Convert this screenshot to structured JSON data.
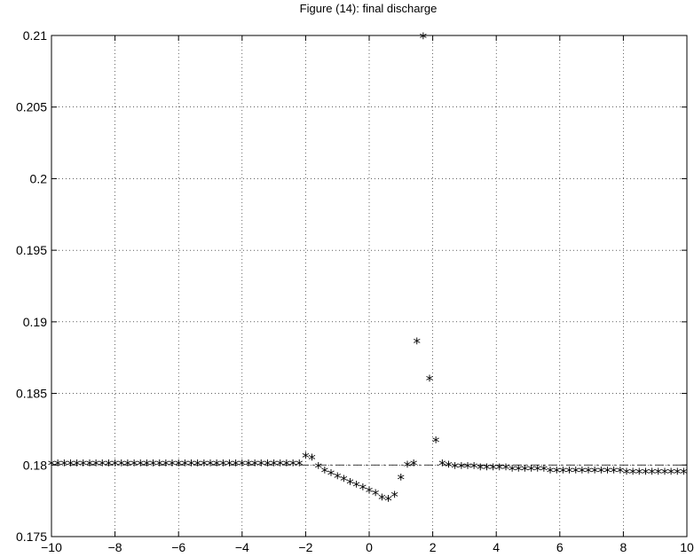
{
  "chart_data": {
    "type": "scatter",
    "title": "Figure (14): final discharge",
    "xlabel": "",
    "ylabel": "",
    "xlim": [
      -10,
      10
    ],
    "ylim": [
      0.175,
      0.21
    ],
    "grid": true,
    "x_ticks": [
      -10,
      -8,
      -6,
      -4,
      -2,
      0,
      2,
      4,
      6,
      8,
      10
    ],
    "x_tick_labels": [
      "−10",
      "−8",
      "−6",
      "−4",
      "−2",
      "0",
      "2",
      "4",
      "6",
      "8",
      "10"
    ],
    "y_ticks": [
      0.175,
      0.18,
      0.185,
      0.19,
      0.195,
      0.2,
      0.205,
      0.21
    ],
    "y_tick_labels": [
      "0.175",
      "0.18",
      "0.185",
      "0.19",
      "0.195",
      "0.2",
      "0.205",
      "0.21"
    ],
    "marker": "*",
    "reference_line": {
      "y": 0.18,
      "style": "dash-dot"
    },
    "series": [
      {
        "x": [
          -10,
          -9.8,
          -9.6,
          -9.4,
          -9.2,
          -9.0,
          -8.8,
          -8.6,
          -8.4,
          -8.2,
          -8.0,
          -7.8,
          -7.6,
          -7.4,
          -7.2,
          -7.0,
          -6.8,
          -6.6,
          -6.4,
          -6.2,
          -6.0,
          -5.8,
          -5.6,
          -5.4,
          -5.2,
          -5.0,
          -4.8,
          -4.6,
          -4.4,
          -4.2,
          -4.0,
          -3.8,
          -3.6,
          -3.4,
          -3.2,
          -3.0,
          -2.8,
          -2.6,
          -2.4,
          -2.2,
          -2.0,
          -1.8,
          -1.6,
          -1.4,
          -1.2,
          -1.0,
          -0.8,
          -0.6,
          -0.4,
          -0.2,
          0.0,
          0.2,
          0.4,
          0.6,
          0.8,
          1.0,
          1.2,
          1.4,
          1.5,
          1.7,
          1.9,
          2.1,
          2.3,
          2.5,
          2.7,
          2.9,
          3.1,
          3.3,
          3.5,
          3.7,
          3.9,
          4.1,
          4.3,
          4.5,
          4.7,
          4.9,
          5.1,
          5.3,
          5.5,
          5.7,
          5.9,
          6.1,
          6.3,
          6.5,
          6.7,
          6.9,
          7.1,
          7.3,
          7.5,
          7.7,
          7.9,
          8.1,
          8.3,
          8.5,
          8.7,
          8.9,
          9.1,
          9.3,
          9.5,
          9.7,
          9.9
        ],
        "y": [
          0.18,
          0.18,
          0.18,
          0.18,
          0.18,
          0.18,
          0.18,
          0.18,
          0.18,
          0.18,
          0.18,
          0.18,
          0.18,
          0.18,
          0.18,
          0.18,
          0.18,
          0.18,
          0.18,
          0.18,
          0.18,
          0.18,
          0.18,
          0.18,
          0.18,
          0.18,
          0.18,
          0.18,
          0.18,
          0.18,
          0.18,
          0.18,
          0.18,
          0.18,
          0.18,
          0.18,
          0.18,
          0.18,
          0.18,
          0.18,
          0.1805,
          0.1804,
          0.1798,
          0.1795,
          0.1793,
          0.1791,
          0.1789,
          0.1787,
          0.1785,
          0.1783,
          0.1781,
          0.1779,
          0.1776,
          0.1775,
          0.1778,
          0.179,
          0.1799,
          0.18,
          0.1885,
          0.2098,
          0.1859,
          0.1816,
          0.18,
          0.1799,
          0.1798,
          0.1798,
          0.1798,
          0.1798,
          0.1797,
          0.1797,
          0.1797,
          0.1797,
          0.1797,
          0.1796,
          0.1796,
          0.1796,
          0.1796,
          0.1796,
          0.1796,
          0.1795,
          0.1795,
          0.1795,
          0.1795,
          0.1795,
          0.1795,
          0.1795,
          0.1795,
          0.1795,
          0.1795,
          0.1795,
          0.1795,
          0.1794,
          0.1794,
          0.1794,
          0.1794,
          0.1794,
          0.1794,
          0.1794,
          0.1794,
          0.1794,
          0.1794
        ]
      }
    ]
  }
}
